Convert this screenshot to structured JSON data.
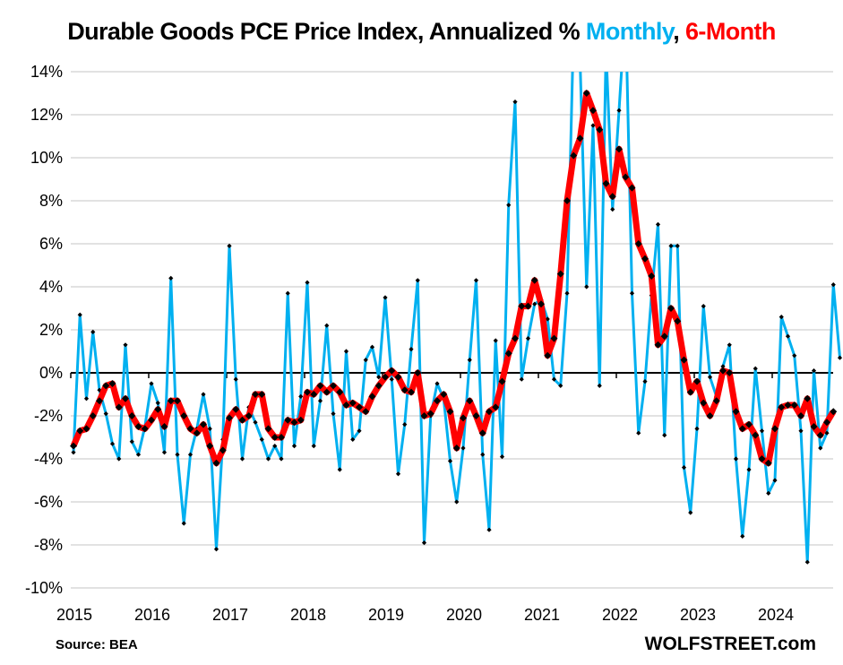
{
  "title": {
    "prefix": "Durable Goods PCE Price Index, Annualized % ",
    "monthly": "Monthly",
    "sep": ", ",
    "six_month": "6-Month"
  },
  "source": "Source: BEA",
  "brand": "WOLFSTREET.com",
  "chart_data": {
    "type": "line",
    "title": "Durable Goods PCE Price Index, Annualized % Monthly, 6-Month",
    "xlabel": "",
    "ylabel": "",
    "ylim": [
      -10,
      14
    ],
    "yticks": [
      14,
      12,
      10,
      8,
      6,
      4,
      2,
      0,
      -2,
      -4,
      -6,
      -8,
      -10
    ],
    "ytick_labels": [
      "14%",
      "12%",
      "10%",
      "8%",
      "6%",
      "4%",
      "2%",
      "0%",
      "-2%",
      "-4%",
      "-6%",
      "-8%",
      "-10%"
    ],
    "xticks": [
      "2015",
      "2016",
      "2017",
      "2018",
      "2019",
      "2020",
      "2021",
      "2022",
      "2023",
      "2024"
    ],
    "x_start": "2015-01",
    "grid": true,
    "colors": {
      "monthly": "#00b0f0",
      "six_month": "#ff0000",
      "marker": "#000000",
      "grid": "#d9d9d9"
    },
    "series": [
      {
        "name": "Monthly",
        "values": [
          -3.7,
          2.7,
          -1.2,
          1.9,
          -0.8,
          -1.9,
          -3.3,
          -4.0,
          1.3,
          -3.2,
          -3.8,
          -2.5,
          -0.5,
          -1.4,
          -3.7,
          4.4,
          -3.8,
          -7.0,
          -3.8,
          -2.6,
          -1.0,
          -2.6,
          -8.2,
          -3.1,
          5.9,
          -0.3,
          -4.0,
          -1.6,
          -2.3,
          -3.1,
          -4.0,
          -3.4,
          -4.0,
          3.7,
          -3.4,
          -1.1,
          4.2,
          -3.4,
          -1.3,
          2.2,
          -1.9,
          -4.5,
          1.0,
          -3.1,
          -2.7,
          0.6,
          1.2,
          -0.2,
          3.5,
          -0.3,
          -4.7,
          -2.4,
          1.1,
          4.3,
          -7.9,
          -2.0,
          -0.5,
          -1.2,
          -4.1,
          -6.0,
          -3.5,
          0.6,
          4.3,
          -3.8,
          -7.3,
          1.5,
          -3.9,
          7.8,
          12.6,
          -0.3,
          1.6,
          3.2,
          3.4,
          2.5,
          -0.3,
          -0.6,
          3.7,
          16.0,
          14.5,
          4.0,
          11.5,
          -0.6,
          15.0,
          7.6,
          12.2,
          17.0,
          3.7,
          -2.8,
          -0.4,
          3.6,
          6.9,
          -2.9,
          5.9,
          5.9,
          -4.4,
          -6.5,
          -2.6,
          3.1,
          -0.2,
          -1.1,
          0.3,
          1.3,
          -4.0,
          -7.6,
          -4.5,
          0.2,
          -2.7,
          -5.6,
          -5.0,
          2.6,
          1.7,
          0.8,
          -2.7,
          -8.8,
          0.1,
          -3.5,
          -2.8,
          4.1,
          0.7
        ]
      },
      {
        "name": "6-Month",
        "values": [
          -3.4,
          -2.7,
          -2.6,
          -2.0,
          -1.3,
          -0.6,
          -0.5,
          -1.6,
          -1.2,
          -2.0,
          -2.5,
          -2.6,
          -2.2,
          -1.7,
          -2.5,
          -1.3,
          -1.3,
          -2.0,
          -2.6,
          -2.8,
          -2.4,
          -3.4,
          -4.2,
          -3.6,
          -2.1,
          -1.7,
          -2.2,
          -2.0,
          -1.0,
          -1.0,
          -2.6,
          -3.0,
          -3.0,
          -2.2,
          -2.3,
          -2.2,
          -0.9,
          -1.0,
          -0.6,
          -0.9,
          -0.6,
          -0.9,
          -1.5,
          -1.4,
          -1.6,
          -1.8,
          -1.1,
          -0.6,
          -0.2,
          0.1,
          -0.2,
          -0.8,
          -0.9,
          0.0,
          -2.0,
          -1.9,
          -1.3,
          -1.0,
          -1.8,
          -3.5,
          -2.1,
          -1.3,
          -2.0,
          -2.8,
          -1.8,
          -1.6,
          -0.4,
          0.9,
          1.6,
          3.1,
          3.1,
          4.3,
          3.2,
          0.8,
          1.6,
          4.6,
          8.0,
          10.1,
          10.9,
          13.0,
          12.2,
          11.3,
          8.8,
          8.2,
          10.4,
          9.1,
          8.6,
          6.0,
          5.3,
          4.5,
          1.3,
          1.7,
          3.0,
          2.4,
          0.6,
          -0.9,
          -0.4,
          -1.4,
          -2.0,
          -1.3,
          0.1,
          0.0,
          -1.8,
          -2.6,
          -2.4,
          -2.9,
          -4.0,
          -4.2,
          -2.6,
          -1.6,
          -1.5,
          -1.5,
          -2.0,
          -1.2,
          -2.5,
          -2.9,
          -2.3,
          -1.8
        ]
      }
    ]
  }
}
